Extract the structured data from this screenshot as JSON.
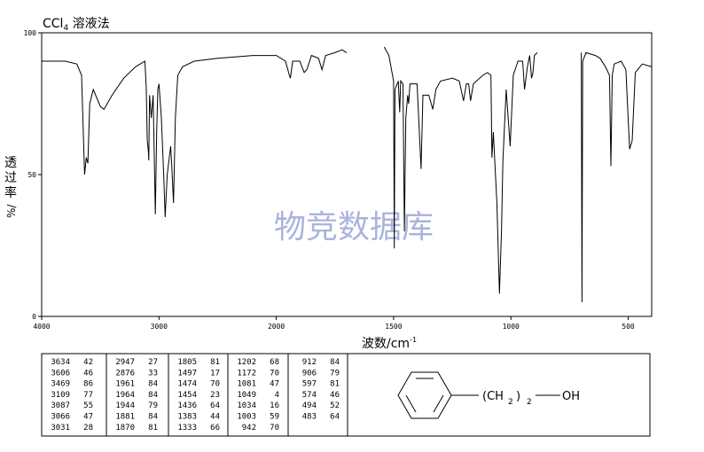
{
  "chart_data": {
    "type": "line",
    "title": "CCl",
    "title_sub": "4",
    "title_rest": " 溶液法",
    "y_label": [
      "透",
      "过",
      "率",
      "%/"
    ],
    "x_label": "波数/cm",
    "x_label_sup": "-1",
    "watermark": "物竞数据库",
    "color": "#000000",
    "xlim": [
      4000,
      400
    ],
    "x_scale_change": 2000,
    "xticks": [
      4000,
      3000,
      2000,
      1500,
      1000,
      500
    ],
    "ylim": [
      0,
      100
    ],
    "yticks": [
      0,
      50,
      100
    ],
    "x": [
      4000,
      3800,
      3700,
      3660,
      3634,
      3620,
      3606,
      3590,
      3560,
      3500,
      3469,
      3400,
      3300,
      3200,
      3120,
      3109,
      3100,
      3090,
      3087,
      3080,
      3066,
      3050,
      3031,
      3020,
      3010,
      3000,
      2980,
      2960,
      2947,
      2930,
      2900,
      2890,
      2876,
      2860,
      2840,
      2800,
      2700,
      2500,
      2200,
      2000,
      1961,
      1944,
      1940,
      1930,
      1900,
      1881,
      1870,
      1850,
      1820,
      1805,
      1790,
      1750,
      1720,
      1700,
      null,
      1540,
      1520,
      1500,
      1497,
      1494,
      1480,
      1474,
      1470,
      1460,
      1454,
      1448,
      1440,
      1436,
      1430,
      1400,
      1383,
      1375,
      1350,
      1333,
      1320,
      1300,
      1250,
      1220,
      1202,
      1190,
      1180,
      1172,
      1160,
      1120,
      1100,
      1085,
      1081,
      1075,
      1060,
      1049,
      1040,
      1034,
      1020,
      1003,
      990,
      970,
      950,
      942,
      930,
      920,
      912,
      906,
      900,
      888,
      null,
      700,
      697,
      694,
      680,
      640,
      620,
      597,
      580,
      574,
      568,
      560,
      530,
      510,
      494,
      483,
      470,
      440,
      400
    ],
    "values": [
      90,
      90,
      89,
      85,
      50,
      56,
      54,
      75,
      80,
      74,
      73,
      78,
      84,
      88,
      90,
      81,
      62,
      58,
      55,
      78,
      70,
      78,
      36,
      65,
      80,
      82,
      70,
      50,
      35,
      50,
      60,
      52,
      40,
      70,
      85,
      88,
      90,
      91,
      92,
      92,
      90,
      85,
      84,
      90,
      90,
      86,
      87,
      92,
      91,
      87,
      92,
      93,
      94,
      93,
      null,
      95,
      92,
      83,
      24,
      80,
      83,
      72,
      83,
      82,
      30,
      70,
      78,
      75,
      82,
      82,
      52,
      78,
      78,
      73,
      80,
      83,
      84,
      83,
      76,
      82,
      82,
      76,
      82,
      85,
      86,
      85,
      56,
      65,
      40,
      8,
      30,
      55,
      80,
      60,
      85,
      90,
      90,
      80,
      88,
      92,
      84,
      86,
      92,
      93,
      null,
      93,
      5,
      90,
      93,
      92,
      91,
      88,
      85,
      53,
      85,
      89,
      90,
      87,
      59,
      62,
      86,
      89,
      88
    ]
  },
  "peak_table": [
    [
      [
        3634,
        42
      ],
      [
        3606,
        46
      ],
      [
        3469,
        86
      ],
      [
        3109,
        77
      ],
      [
        3087,
        55
      ],
      [
        3066,
        47
      ],
      [
        3031,
        28
      ]
    ],
    [
      [
        2947,
        27
      ],
      [
        2876,
        33
      ],
      [
        1961,
        84
      ],
      [
        1964,
        84
      ],
      [
        1944,
        79
      ],
      [
        1881,
        84
      ],
      [
        1870,
        81
      ]
    ],
    [
      [
        1805,
        81
      ],
      [
        1497,
        17
      ],
      [
        1474,
        70
      ],
      [
        1454,
        23
      ],
      [
        1436,
        64
      ],
      [
        1383,
        44
      ],
      [
        1333,
        66
      ]
    ],
    [
      [
        1202,
        68
      ],
      [
        1172,
        70
      ],
      [
        1081,
        47
      ],
      [
        1049,
        4
      ],
      [
        1034,
        16
      ],
      [
        1003,
        59
      ],
      [
        942,
        70
      ]
    ],
    [
      [
        912,
        84
      ],
      [
        906,
        79
      ],
      [
        597,
        81
      ],
      [
        574,
        46
      ],
      [
        494,
        52
      ],
      [
        483,
        64
      ]
    ]
  ],
  "structure": {
    "parts": [
      "(CH",
      "2",
      ")",
      "2",
      "OH"
    ]
  }
}
